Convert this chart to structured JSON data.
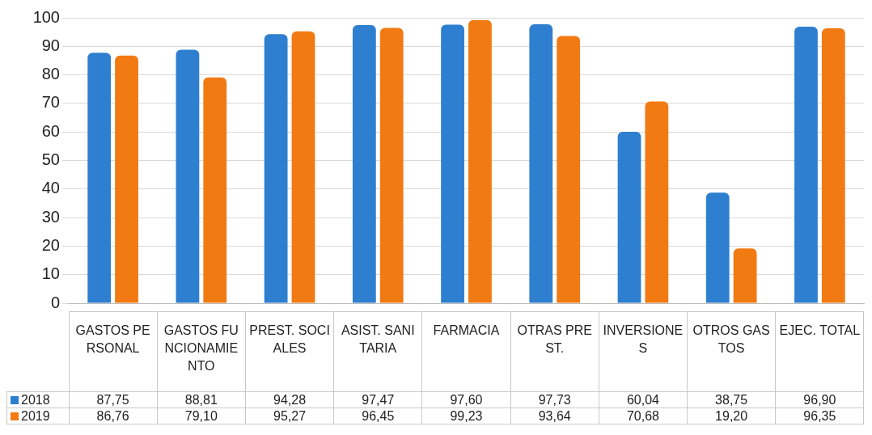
{
  "chart_data": {
    "type": "bar",
    "categories": [
      "GASTOS PERSONAL",
      "GASTOS FUNCIONAMIENTO",
      "PREST. SOCIALES",
      "ASIST. SANITARIA",
      "FARMACIA",
      "OTRAS PREST.",
      "INVERSIONES",
      "OTROS GASTOS",
      "EJEC. TOTAL"
    ],
    "series": [
      {
        "name": "2018",
        "color": "#2e7fd0",
        "values": [
          87.75,
          88.81,
          94.28,
          97.47,
          97.6,
          97.73,
          60.04,
          38.75,
          96.9
        ],
        "value_labels": [
          "87,75",
          "88,81",
          "94,28",
          "97,47",
          "97,60",
          "97,73",
          "60,04",
          "38,75",
          "96,90"
        ]
      },
      {
        "name": "2019",
        "color": "#f27a12",
        "values": [
          86.76,
          79.1,
          95.27,
          96.45,
          99.23,
          93.64,
          70.68,
          19.2,
          96.35
        ],
        "value_labels": [
          "86,76",
          "79,10",
          "95,27",
          "96,45",
          "99,23",
          "93,64",
          "70,68",
          "19,20",
          "96,35"
        ]
      }
    ],
    "ylim": [
      0,
      100
    ],
    "yticks": [
      0,
      10,
      20,
      30,
      40,
      50,
      60,
      70,
      80,
      90,
      100
    ],
    "grid": "y",
    "legend": "bottom"
  }
}
